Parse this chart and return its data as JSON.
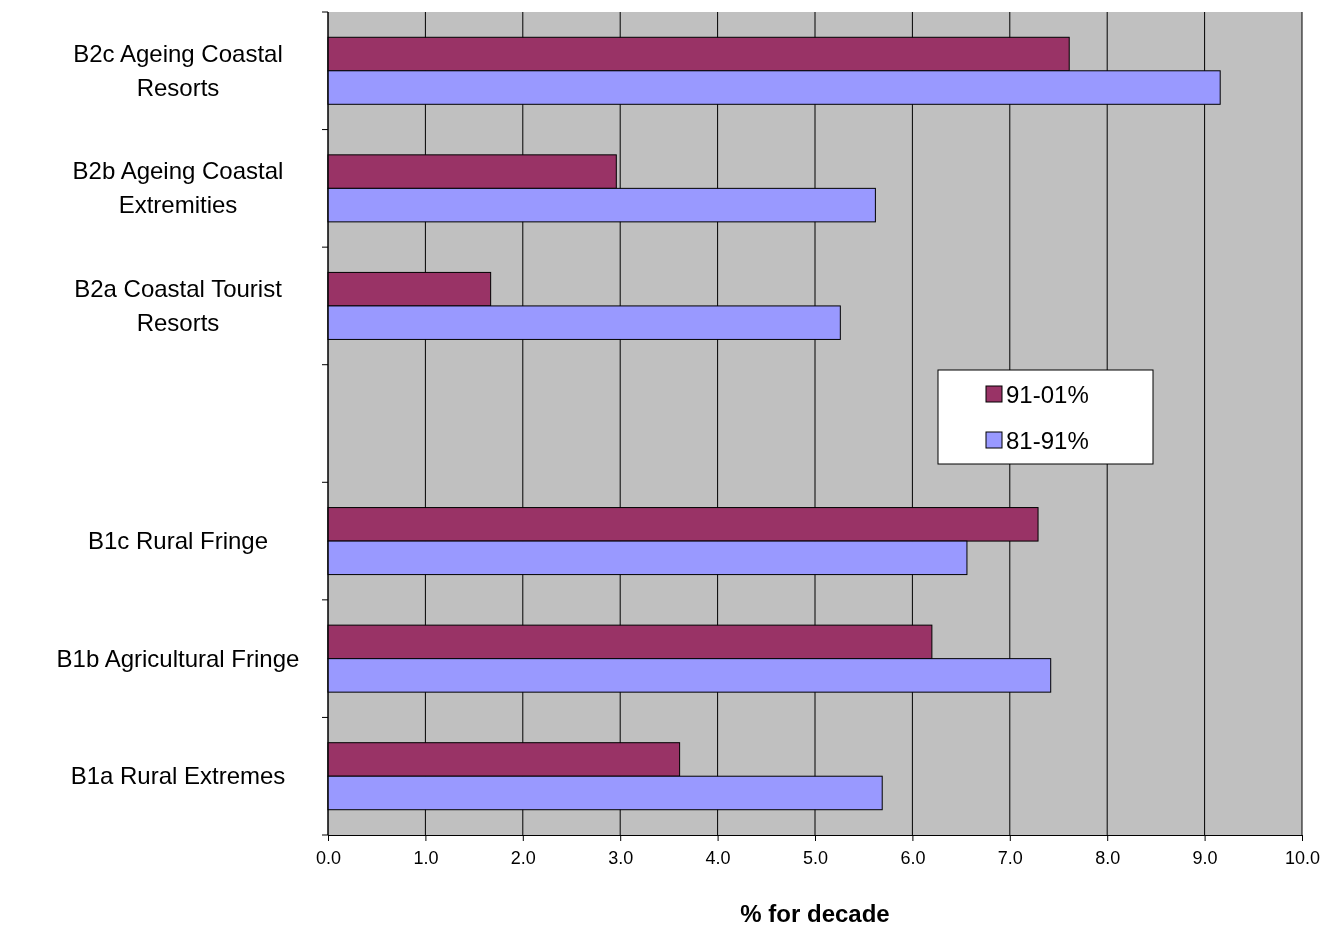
{
  "chart_data": {
    "type": "bar",
    "orientation": "horizontal",
    "xlabel": "% for decade",
    "categories": [
      "B2c Ageing Coastal Resorts",
      "B2b Ageing Coastal Extremities",
      "B2a Coastal Tourist Resorts",
      null,
      "B1c Rural Fringe",
      "B1b Agricultural Fringe",
      "B1a Rural Extremes"
    ],
    "series": [
      {
        "name": "91-01%",
        "color": "#993366",
        "values": [
          7.61,
          2.96,
          1.67,
          null,
          7.29,
          6.2,
          3.61
        ]
      },
      {
        "name": "81-91%",
        "color": "#9999ff",
        "values": [
          9.16,
          5.62,
          5.26,
          null,
          6.56,
          7.42,
          5.69
        ]
      }
    ],
    "xlim": [
      0,
      10
    ],
    "xticks": [
      {
        "value": 0,
        "label": "0.0"
      },
      {
        "value": 1,
        "label": "1.0"
      },
      {
        "value": 2,
        "label": "2.0"
      },
      {
        "value": 3,
        "label": "3.0"
      },
      {
        "value": 4,
        "label": "4.0"
      },
      {
        "value": 5,
        "label": "5.0"
      },
      {
        "value": 6,
        "label": "6.0"
      },
      {
        "value": 7,
        "label": "7.0"
      },
      {
        "value": 8,
        "label": "8.0"
      },
      {
        "value": 9,
        "label": "9.0"
      },
      {
        "value": 10,
        "label": "10.0"
      }
    ],
    "grid": "x",
    "legend": "right"
  }
}
